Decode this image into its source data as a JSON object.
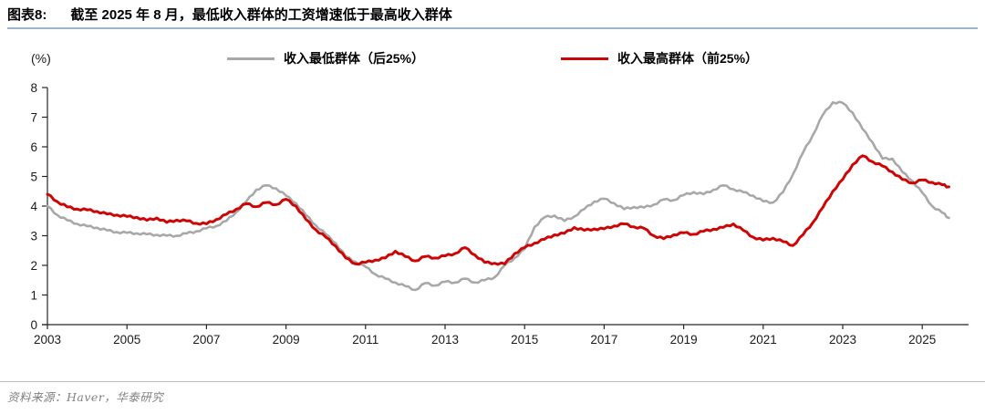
{
  "header": {
    "figure_label": "图表8:",
    "title": "截至 2025 年 8 月，最低收入群体的工资增速低于最高收入群体"
  },
  "footer": {
    "source": "资料来源：Haver，华泰研究"
  },
  "colors": {
    "header_rule": "#9ab4d4",
    "footer_rule": "#bfbfbf",
    "axis": "#262626",
    "lowest_group_line": "#a8a8a8",
    "highest_group_line": "#ce0505"
  },
  "chart_data": {
    "type": "line",
    "title": "截至 2025 年 8 月，最低收入群体的工资增速低于最高收入群体",
    "unit_label": "(%)",
    "xlabel": "",
    "ylabel": "(%)",
    "ylim": [
      0,
      8
    ],
    "yticks": [
      0,
      1,
      2,
      3,
      4,
      5,
      6,
      7,
      8
    ],
    "xticks": [
      2003,
      2005,
      2007,
      2009,
      2011,
      2013,
      2015,
      2017,
      2019,
      2021,
      2023,
      2025
    ],
    "grid": false,
    "legend_position": "top-center",
    "x_start": 2003.0,
    "x_end": 2025.67,
    "x": [
      2003.0,
      2003.25,
      2003.5,
      2003.75,
      2004.0,
      2004.25,
      2004.5,
      2004.75,
      2005.0,
      2005.25,
      2005.5,
      2005.75,
      2006.0,
      2006.25,
      2006.5,
      2006.75,
      2007.0,
      2007.25,
      2007.5,
      2007.75,
      2008.0,
      2008.25,
      2008.5,
      2008.75,
      2009.0,
      2009.25,
      2009.5,
      2009.75,
      2010.0,
      2010.25,
      2010.5,
      2010.75,
      2011.0,
      2011.25,
      2011.5,
      2011.75,
      2012.0,
      2012.25,
      2012.5,
      2012.75,
      2013.0,
      2013.25,
      2013.5,
      2013.75,
      2014.0,
      2014.25,
      2014.5,
      2014.75,
      2015.0,
      2015.25,
      2015.5,
      2015.75,
      2016.0,
      2016.25,
      2016.5,
      2016.75,
      2017.0,
      2017.25,
      2017.5,
      2017.75,
      2018.0,
      2018.25,
      2018.5,
      2018.75,
      2019.0,
      2019.25,
      2019.5,
      2019.75,
      2020.0,
      2020.25,
      2020.5,
      2020.75,
      2021.0,
      2021.25,
      2021.5,
      2021.75,
      2022.0,
      2022.25,
      2022.5,
      2022.75,
      2023.0,
      2023.25,
      2023.5,
      2023.75,
      2024.0,
      2024.25,
      2024.5,
      2024.75,
      2025.0,
      2025.25,
      2025.5,
      2025.67
    ],
    "series": [
      {
        "name": "收入最低群体（后25%）",
        "key": "lowest-income-group-bottom-25pct",
        "color": "#a8a8a8",
        "values": [
          4.0,
          3.7,
          3.52,
          3.4,
          3.32,
          3.27,
          3.18,
          3.12,
          3.1,
          3.08,
          3.05,
          3.03,
          3.0,
          3.0,
          3.08,
          3.15,
          3.25,
          3.33,
          3.5,
          3.8,
          4.15,
          4.55,
          4.7,
          4.6,
          4.35,
          4.1,
          3.7,
          3.35,
          3.05,
          2.75,
          2.3,
          2.12,
          1.95,
          1.7,
          1.55,
          1.42,
          1.3,
          1.17,
          1.4,
          1.32,
          1.45,
          1.42,
          1.55,
          1.42,
          1.5,
          1.6,
          2.0,
          2.25,
          2.55,
          3.3,
          3.62,
          3.68,
          3.5,
          3.65,
          3.9,
          4.15,
          4.25,
          4.1,
          3.9,
          3.97,
          3.95,
          4.05,
          4.22,
          4.2,
          4.37,
          4.47,
          4.4,
          4.55,
          4.7,
          4.57,
          4.47,
          4.35,
          4.16,
          4.12,
          4.47,
          5.08,
          5.8,
          6.4,
          7.08,
          7.5,
          7.48,
          7.15,
          6.6,
          6.15,
          5.6,
          5.6,
          5.15,
          4.85,
          4.45,
          4.0,
          3.78,
          3.6
        ]
      },
      {
        "name": "收入最高群体（前25%）",
        "key": "highest-income-group-top-25pct",
        "color": "#ce0505",
        "values": [
          4.4,
          4.15,
          3.97,
          3.9,
          3.87,
          3.82,
          3.73,
          3.7,
          3.65,
          3.62,
          3.52,
          3.6,
          3.45,
          3.53,
          3.5,
          3.42,
          3.4,
          3.55,
          3.72,
          3.9,
          4.08,
          3.98,
          4.12,
          4.05,
          4.23,
          4.0,
          3.55,
          3.2,
          2.95,
          2.65,
          2.25,
          2.05,
          2.1,
          2.18,
          2.25,
          2.48,
          2.3,
          2.15,
          2.3,
          2.25,
          2.32,
          2.4,
          2.6,
          2.35,
          2.1,
          2.07,
          2.05,
          2.4,
          2.6,
          2.75,
          2.88,
          3.03,
          3.08,
          3.28,
          3.18,
          3.23,
          3.23,
          3.33,
          3.4,
          3.3,
          3.25,
          3.0,
          2.9,
          3.03,
          3.1,
          3.05,
          3.15,
          3.22,
          3.28,
          3.4,
          3.18,
          2.95,
          2.85,
          2.92,
          2.8,
          2.67,
          3.03,
          3.45,
          3.95,
          4.5,
          4.9,
          5.4,
          5.7,
          5.5,
          5.35,
          5.15,
          4.9,
          4.78,
          4.88,
          4.8,
          4.72,
          4.65
        ]
      }
    ]
  }
}
